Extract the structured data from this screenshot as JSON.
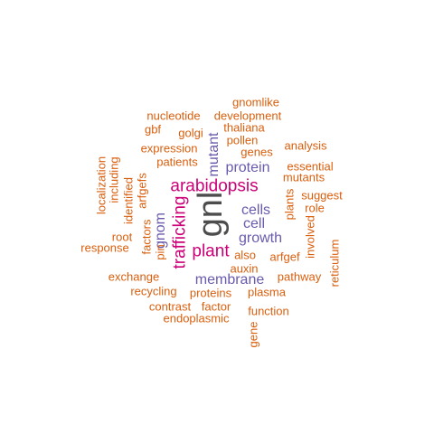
{
  "colors": {
    "large": "#4d4d4d",
    "magenta": "#cc0077",
    "purple": "#6a5aad",
    "orange": "#d95f0e"
  },
  "words": [
    {
      "text": "gnl",
      "color": "large",
      "rotated": true
    },
    {
      "text": "arabidopsis",
      "color": "magenta",
      "rotated": false
    },
    {
      "text": "trafficking",
      "color": "magenta",
      "rotated": true
    },
    {
      "text": "plant",
      "color": "magenta",
      "rotated": false
    },
    {
      "text": "gnom",
      "color": "purple",
      "rotated": true
    },
    {
      "text": "cells",
      "color": "purple",
      "rotated": false
    },
    {
      "text": "cell",
      "color": "purple",
      "rotated": false
    },
    {
      "text": "growth",
      "color": "purple",
      "rotated": false
    },
    {
      "text": "membrane",
      "color": "purple",
      "rotated": false
    },
    {
      "text": "protein",
      "color": "purple",
      "rotated": false
    },
    {
      "text": "mutant",
      "color": "purple",
      "rotated": true
    },
    {
      "text": "gnomlike",
      "color": "orange",
      "rotated": false
    },
    {
      "text": "nucleotide",
      "color": "orange",
      "rotated": false
    },
    {
      "text": "development",
      "color": "orange",
      "rotated": false
    },
    {
      "text": "thaliana",
      "color": "orange",
      "rotated": false
    },
    {
      "text": "gbf",
      "color": "orange",
      "rotated": false
    },
    {
      "text": "golgi",
      "color": "orange",
      "rotated": false
    },
    {
      "text": "pollen",
      "color": "orange",
      "rotated": false
    },
    {
      "text": "expression",
      "color": "orange",
      "rotated": false
    },
    {
      "text": "analysis",
      "color": "orange",
      "rotated": false
    },
    {
      "text": "genes",
      "color": "orange",
      "rotated": false
    },
    {
      "text": "patients",
      "color": "orange",
      "rotated": false
    },
    {
      "text": "essential",
      "color": "orange",
      "rotated": false
    },
    {
      "text": "mutants",
      "color": "orange",
      "rotated": false
    },
    {
      "text": "localization",
      "color": "orange",
      "rotated": true
    },
    {
      "text": "including",
      "color": "orange",
      "rotated": true
    },
    {
      "text": "identified",
      "color": "orange",
      "rotated": true
    },
    {
      "text": "arfgefs",
      "color": "orange",
      "rotated": true
    },
    {
      "text": "suggest",
      "color": "orange",
      "rotated": false
    },
    {
      "text": "role",
      "color": "orange",
      "rotated": false
    },
    {
      "text": "plants",
      "color": "orange",
      "rotated": true
    },
    {
      "text": "root",
      "color": "orange",
      "rotated": false
    },
    {
      "text": "factors",
      "color": "orange",
      "rotated": true
    },
    {
      "text": "response",
      "color": "orange",
      "rotated": false
    },
    {
      "text": "pin",
      "color": "orange",
      "rotated": true
    },
    {
      "text": "involved",
      "color": "orange",
      "rotated": true
    },
    {
      "text": "reticulum",
      "color": "orange",
      "rotated": true
    },
    {
      "text": "also",
      "color": "orange",
      "rotated": false
    },
    {
      "text": "arfgef",
      "color": "orange",
      "rotated": false
    },
    {
      "text": "auxin",
      "color": "orange",
      "rotated": false
    },
    {
      "text": "exchange",
      "color": "orange",
      "rotated": false
    },
    {
      "text": "pathway",
      "color": "orange",
      "rotated": false
    },
    {
      "text": "recycling",
      "color": "orange",
      "rotated": false
    },
    {
      "text": "proteins",
      "color": "orange",
      "rotated": false
    },
    {
      "text": "plasma",
      "color": "orange",
      "rotated": false
    },
    {
      "text": "contrast",
      "color": "orange",
      "rotated": false
    },
    {
      "text": "factor",
      "color": "orange",
      "rotated": false
    },
    {
      "text": "function",
      "color": "orange",
      "rotated": false
    },
    {
      "text": "endoplasmic",
      "color": "orange",
      "rotated": false
    },
    {
      "text": "gene",
      "color": "orange",
      "rotated": true
    }
  ]
}
